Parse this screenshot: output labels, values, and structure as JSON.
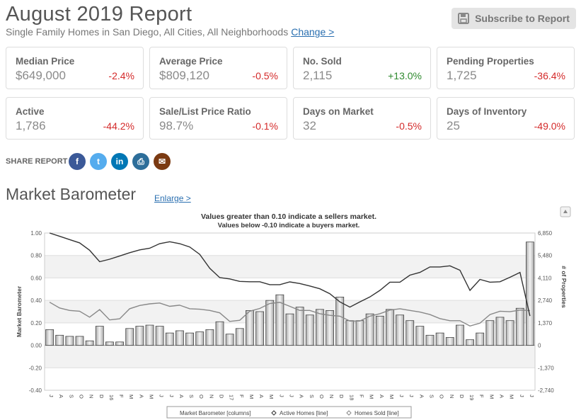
{
  "header": {
    "title": "August 2019 Report",
    "subtitle": "Single Family Homes in San Diego, All Cities, All Neighborhoods",
    "change_link": "Change >",
    "subscribe_label": "Subscribe to Report"
  },
  "stats": [
    {
      "label": "Median Price",
      "value": "$649,000",
      "change": "-2.4%",
      "direction": "neg"
    },
    {
      "label": "Average Price",
      "value": "$809,120",
      "change": "-0.5%",
      "direction": "neg"
    },
    {
      "label": "No. Sold",
      "value": "2,115",
      "change": "+13.0%",
      "direction": "pos"
    },
    {
      "label": "Pending Properties",
      "value": "1,725",
      "change": "-36.4%",
      "direction": "neg"
    },
    {
      "label": "Active",
      "value": "1,786",
      "change": "-44.2%",
      "direction": "neg"
    },
    {
      "label": "Sale/List Price Ratio",
      "value": "98.7%",
      "change": "-0.1%",
      "direction": "neg"
    },
    {
      "label": "Days on Market",
      "value": "32",
      "change": "-0.5%",
      "direction": "neg"
    },
    {
      "label": "Days of Inventory",
      "value": "25",
      "change": "-49.0%",
      "direction": "neg"
    }
  ],
  "share": {
    "label": "SHARE REPORT",
    "buttons": [
      {
        "name": "facebook",
        "glyph": "f",
        "color": "#3b5998"
      },
      {
        "name": "twitter",
        "glyph": "t",
        "color": "#55acee"
      },
      {
        "name": "linkedin",
        "glyph": "in",
        "color": "#0077b5"
      },
      {
        "name": "print",
        "glyph": "⎙",
        "color": "#2d6e9a"
      },
      {
        "name": "email",
        "glyph": "✉",
        "color": "#7b3a12"
      }
    ]
  },
  "market_barometer": {
    "title": "Market Barometer",
    "enlarge": "Enlarge >"
  },
  "chart_data": {
    "type": "bar",
    "annotation_line1": "Values greater than 0.10 indicate a sellers market.",
    "annotation_line2": "Values below -0.10 indicate a buyers market.",
    "ylabel": "Market Barometer",
    "y2label": "# of Properties",
    "ylim": [
      -0.4,
      1.0
    ],
    "y_ticks": [
      "1.00",
      "0.80",
      "0.60",
      "0.40",
      "0.20",
      "0.00",
      "-0.20",
      "-0.40"
    ],
    "y2lim": [
      -2740,
      6850
    ],
    "y2_ticks": [
      "6,850",
      "5,480",
      "4,110",
      "2,740",
      "1,370",
      "0",
      "-1,370",
      "-2,740"
    ],
    "categories": [
      "J",
      "A",
      "S",
      "O",
      "N",
      "D",
      "16",
      "F",
      "M",
      "A",
      "M",
      "J",
      "J",
      "A",
      "S",
      "O",
      "N",
      "D",
      "17",
      "F",
      "M",
      "A",
      "M",
      "J",
      "J",
      "A",
      "S",
      "O",
      "N",
      "D",
      "18",
      "F",
      "M",
      "A",
      "M",
      "J",
      "J",
      "A",
      "S",
      "O",
      "N",
      "D",
      "19",
      "F",
      "M",
      "A",
      "M",
      "J",
      "J"
    ],
    "grid": true,
    "series": [
      {
        "name": "Market Barometer [columns]",
        "type": "bar",
        "axis": "left",
        "values": [
          0.14,
          0.09,
          0.08,
          0.08,
          0.04,
          0.17,
          0.03,
          0.03,
          0.15,
          0.17,
          0.18,
          0.17,
          0.11,
          0.13,
          0.11,
          0.12,
          0.14,
          0.21,
          0.1,
          0.15,
          0.31,
          0.3,
          0.4,
          0.45,
          0.28,
          0.34,
          0.27,
          0.32,
          0.31,
          0.43,
          0.22,
          0.22,
          0.28,
          0.26,
          0.32,
          0.27,
          0.22,
          0.17,
          0.09,
          0.11,
          0.07,
          0.18,
          0.05,
          0.11,
          0.22,
          0.25,
          0.22,
          0.33,
          0.92
        ]
      },
      {
        "name": "Active Homes [line]",
        "type": "line",
        "axis": "right",
        "values": [
          6850,
          6650,
          6450,
          6250,
          5800,
          5100,
          5250,
          5450,
          5650,
          5820,
          5920,
          6200,
          6320,
          6200,
          6000,
          5550,
          4700,
          4130,
          4050,
          3900,
          3880,
          3880,
          3700,
          3700,
          3870,
          3770,
          3620,
          3450,
          3150,
          2650,
          2330,
          2650,
          2950,
          3350,
          3850,
          3850,
          4280,
          4450,
          4780,
          4780,
          4850,
          4580,
          3350,
          4020,
          3850,
          3880,
          4150,
          4450,
          1786
        ]
      },
      {
        "name": "Homes Sold [line]",
        "type": "line",
        "axis": "right",
        "values": [
          2630,
          2280,
          2130,
          2080,
          1720,
          2180,
          1550,
          1620,
          2230,
          2430,
          2530,
          2580,
          2380,
          2450,
          2230,
          2200,
          2130,
          1980,
          1460,
          1530,
          2080,
          2250,
          2550,
          2620,
          2380,
          2130,
          2130,
          1930,
          1830,
          1780,
          1480,
          1480,
          1780,
          1930,
          2150,
          2230,
          2130,
          2030,
          1880,
          1630,
          1500,
          1500,
          1180,
          1350,
          1880,
          2080,
          2050,
          2150,
          2115
        ]
      }
    ],
    "legend": [
      "Market Barometer [columns]",
      "Active Homes [line]",
      "Homes Sold [line]"
    ],
    "legend_position": "bottom"
  }
}
